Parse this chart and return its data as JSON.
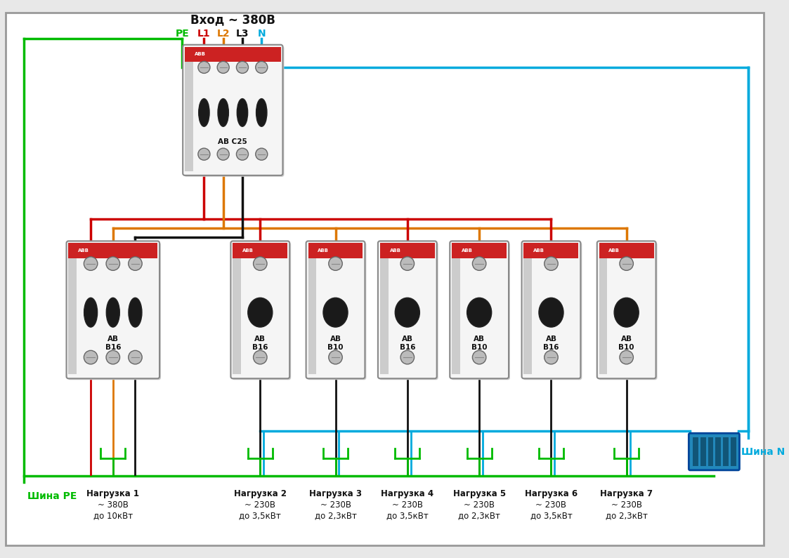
{
  "title": "Вход ~ 380В",
  "bg_color": "#e8e8e8",
  "border_color": "#aaaaaa",
  "wire_colors": {
    "PE": "#00bb00",
    "L1": "#cc0000",
    "L2": "#dd7700",
    "L3": "#111111",
    "N": "#00aadd"
  },
  "label_colors": {
    "PE": "#00bb00",
    "L1": "#cc0000",
    "L2": "#dd7700",
    "L3": "#111111",
    "N": "#00aadd"
  },
  "loads": [
    {
      "name": "Нагрузка 1",
      "voltage": "~ 380В",
      "power": "до 10кВт"
    },
    {
      "name": "Нагрузка 2",
      "voltage": "~ 230В",
      "power": "до 3,5кВт"
    },
    {
      "name": "Нагрузка 3",
      "voltage": "~ 230В",
      "power": "до 2,3кВт"
    },
    {
      "name": "Нагрузка 4",
      "voltage": "~ 230В",
      "power": "до 3,5кВт"
    },
    {
      "name": "Нагрузка 5",
      "voltage": "~ 230В",
      "power": "до 2,3кВт"
    },
    {
      "name": "Нагрузка 6",
      "voltage": "~ 230В",
      "power": "до 3,5кВт"
    },
    {
      "name": "Нагрузка 7",
      "voltage": "~ 230В",
      "power": "до 2,3кВт"
    }
  ],
  "shina_PE": "Шина PE",
  "shina_N": "Шина N",
  "main_label": "АВ C25",
  "sub3_label": "АВ\nB16",
  "sp_labels": [
    "АВ\nB16",
    "АВ\nB10",
    "АВ\nB16",
    "АВ\nB10",
    "АВ\nB16",
    "АВ\nB10"
  ]
}
